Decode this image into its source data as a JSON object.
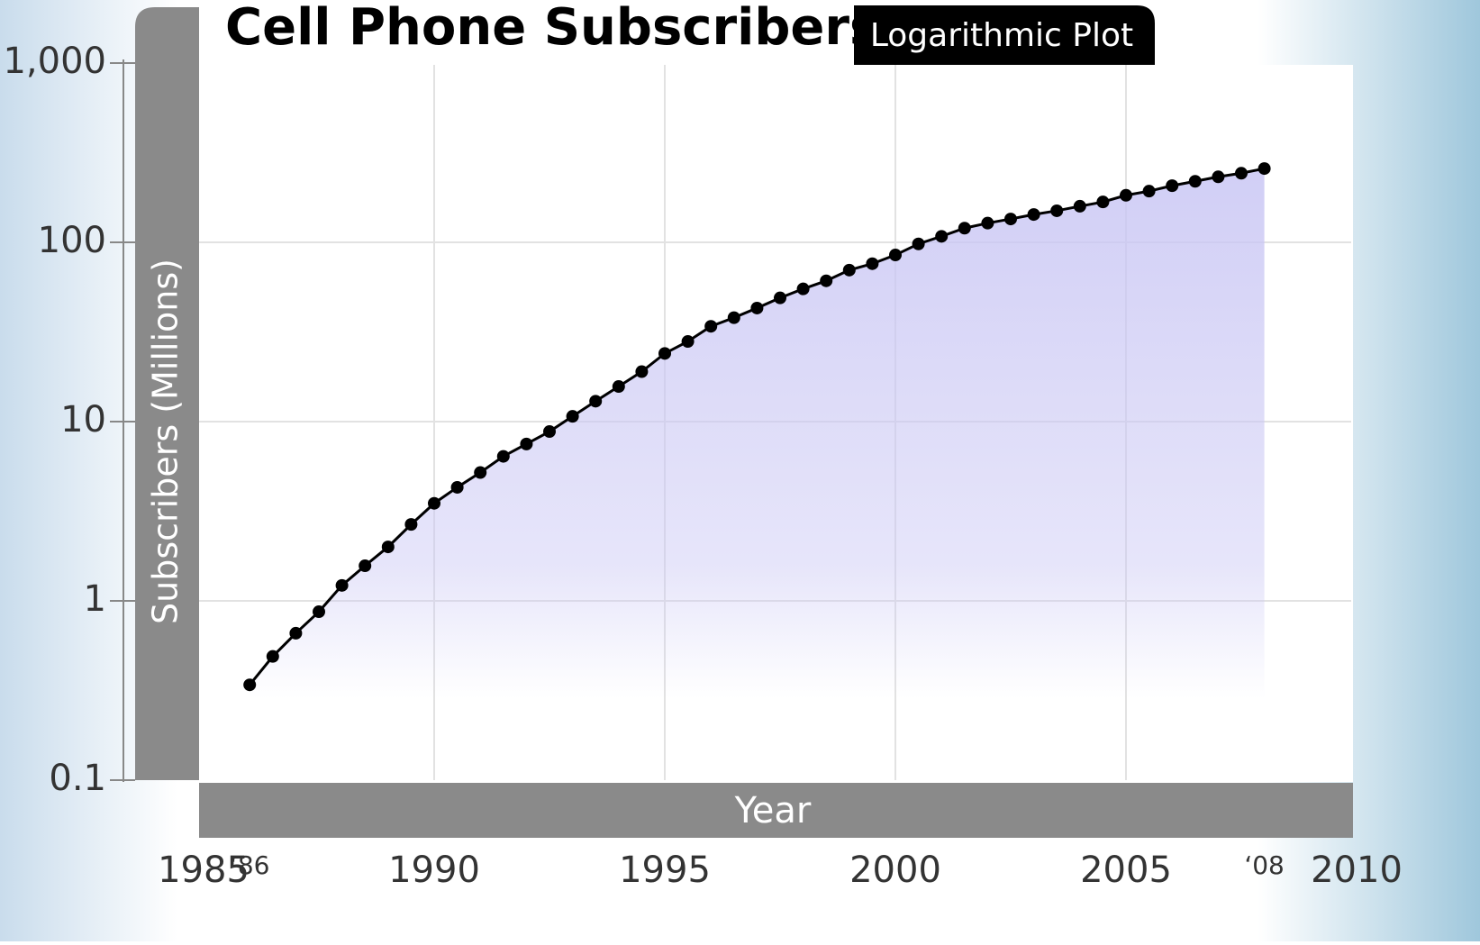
{
  "chart_data": {
    "type": "line",
    "title": "Cell Phone Subscribers",
    "subtitle": "Logarithmic Plot",
    "x_label": "Year",
    "y_label": "Subscribers (Millions)",
    "x": [
      1986,
      1986.5,
      1987,
      1987.5,
      1988,
      1988.5,
      1989,
      1989.5,
      1990,
      1990.5,
      1991,
      1991.5,
      1992,
      1992.5,
      1993,
      1993.5,
      1994,
      1994.5,
      1995,
      1995.5,
      1996,
      1996.5,
      1997,
      1997.5,
      1998,
      1998.5,
      1999,
      1999.5,
      2000,
      2000.5,
      2001,
      2001.5,
      2002,
      2002.5,
      2003,
      2003.5,
      2004,
      2004.5,
      2005,
      2005.5,
      2006,
      2006.5,
      2007,
      2007.5,
      2008
    ],
    "values": [
      0.34,
      0.49,
      0.66,
      0.87,
      1.22,
      1.57,
      2.0,
      2.67,
      3.5,
      4.3,
      5.2,
      6.4,
      7.5,
      8.8,
      10.7,
      13,
      15.7,
      19,
      24,
      28,
      34,
      38,
      43,
      49,
      55,
      61,
      70,
      76,
      85,
      98,
      108,
      120,
      128,
      135,
      143,
      150,
      159,
      168,
      183,
      193,
      207,
      219,
      232,
      243,
      258
    ],
    "color": "#000000",
    "fill": "#c9c6f4",
    "xlim": [
      1985,
      2010
    ],
    "xticks": [
      1985,
      {
        "value": 1986,
        "label": "‘86"
      },
      1990,
      1995,
      2000,
      2005,
      {
        "value": 2008,
        "label": "‘08"
      },
      2010
    ],
    "ylim": [
      0.1,
      1000
    ],
    "y_scale": "log",
    "yticks": [
      0.1,
      1,
      10,
      100,
      {
        "value": 1000,
        "label": "1,000"
      }
    ],
    "grid": true
  }
}
